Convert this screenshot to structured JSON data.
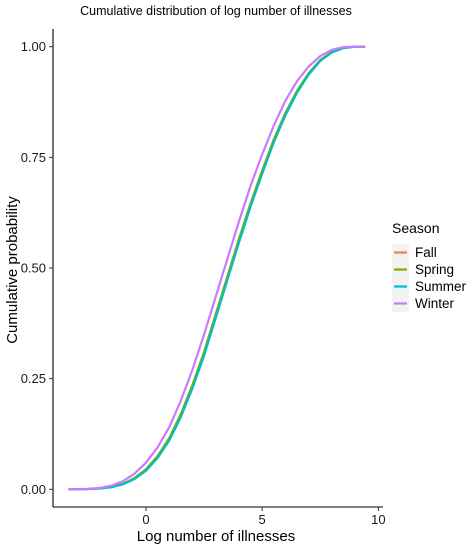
{
  "chart_data": {
    "type": "line",
    "title": "Cumulative distribution of log number of illnesses",
    "xlabel": "Log number of illnesses",
    "ylabel": "Cumulative probability",
    "xlim": [
      -4,
      10.2
    ],
    "ylim": [
      -0.04,
      1.04
    ],
    "x_ticks": [
      0,
      5,
      10
    ],
    "x_tick_labels": [
      "0",
      "5",
      "10"
    ],
    "y_ticks": [
      0,
      0.25,
      0.5,
      0.75,
      1
    ],
    "y_tick_labels": [
      "0.00",
      "0.25",
      "0.50",
      "0.75",
      "1.00"
    ],
    "grid": false,
    "legend": {
      "title": "Season",
      "placement": "right"
    },
    "x": [
      -3.3,
      -3,
      -2.5,
      -2,
      -1.5,
      -1,
      -0.5,
      0,
      0.5,
      1,
      1.5,
      2,
      2.5,
      3,
      3.5,
      4,
      4.5,
      5,
      5.5,
      6,
      6.5,
      7,
      7.5,
      8,
      8.5,
      9,
      9.4
    ],
    "series": [
      {
        "name": "Fall",
        "color": "#F8766D",
        "values": [
          0,
          0.0002,
          0.0007,
          0.002,
          0.005,
          0.012,
          0.025,
          0.045,
          0.075,
          0.115,
          0.17,
          0.235,
          0.31,
          0.395,
          0.48,
          0.565,
          0.645,
          0.72,
          0.79,
          0.85,
          0.9,
          0.94,
          0.97,
          0.988,
          0.997,
          1,
          1
        ]
      },
      {
        "name": "Spring",
        "color": "#7CAE00",
        "values": [
          0,
          0.0002,
          0.0007,
          0.002,
          0.005,
          0.012,
          0.025,
          0.045,
          0.075,
          0.115,
          0.17,
          0.235,
          0.31,
          0.395,
          0.48,
          0.565,
          0.645,
          0.72,
          0.79,
          0.85,
          0.9,
          0.94,
          0.97,
          0.988,
          0.997,
          1,
          1
        ]
      },
      {
        "name": "Summer",
        "color": "#00BFC4",
        "values": [
          0,
          0.0002,
          0.0006,
          0.0018,
          0.0045,
          0.011,
          0.023,
          0.042,
          0.071,
          0.11,
          0.163,
          0.228,
          0.302,
          0.387,
          0.472,
          0.557,
          0.638,
          0.713,
          0.784,
          0.845,
          0.896,
          0.937,
          0.968,
          0.987,
          0.997,
          1,
          1
        ]
      },
      {
        "name": "Winter",
        "color": "#C77CFF",
        "values": [
          0,
          0.0003,
          0.001,
          0.003,
          0.008,
          0.018,
          0.035,
          0.06,
          0.095,
          0.14,
          0.2,
          0.27,
          0.35,
          0.435,
          0.52,
          0.605,
          0.685,
          0.757,
          0.822,
          0.878,
          0.922,
          0.955,
          0.979,
          0.993,
          0.999,
          1,
          1
        ]
      }
    ]
  }
}
